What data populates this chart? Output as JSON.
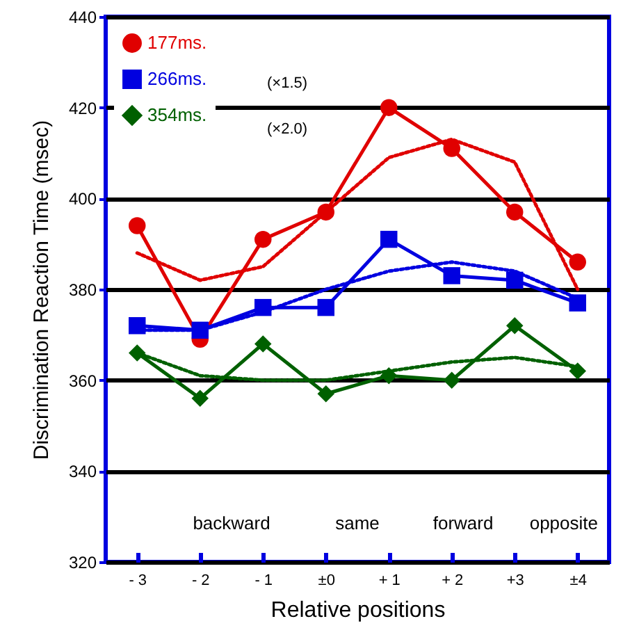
{
  "chart_data": {
    "type": "line",
    "xlabel": "Relative positions",
    "ylabel": "Discrimination Reaction Time (msec)",
    "categories": [
      "- 3",
      "- 2",
      "- 1",
      "±0",
      "+ 1",
      "+ 2",
      "+3",
      "±4"
    ],
    "ylim": [
      320,
      440
    ],
    "yticks": [
      320,
      340,
      360,
      380,
      400,
      420,
      440
    ],
    "grid": "y",
    "legend": "top left",
    "annotations": [
      "(×1.5)",
      "(×2.0)",
      "backward",
      "same",
      "forward",
      "opposite"
    ],
    "series": [
      {
        "name": "177ms.",
        "color": "#e00000",
        "marker": "circle",
        "values": [
          394,
          369,
          391,
          397,
          420,
          411,
          397,
          386
        ]
      },
      {
        "name": "266ms.",
        "color": "#0000e0",
        "marker": "square",
        "values": [
          372,
          371,
          376,
          376,
          391,
          383,
          382,
          377
        ]
      },
      {
        "name": "354ms.",
        "color": "#006000",
        "marker": "diamond",
        "values": [
          366,
          356,
          368,
          357,
          361,
          360,
          372,
          362
        ]
      },
      {
        "color": "#e00000",
        "line_style": "dotted",
        "marker": "none",
        "values": [
          388,
          382,
          385,
          397,
          409,
          413,
          408,
          380
        ]
      },
      {
        "color": "#0000e0",
        "line_style": "dotted",
        "marker": "none",
        "values": [
          371,
          371,
          375,
          380,
          384,
          386,
          384,
          378
        ]
      },
      {
        "color": "#006000",
        "line_style": "dotted",
        "marker": "none",
        "values": [
          366,
          361,
          360,
          360,
          362,
          364,
          365,
          363
        ]
      }
    ]
  }
}
